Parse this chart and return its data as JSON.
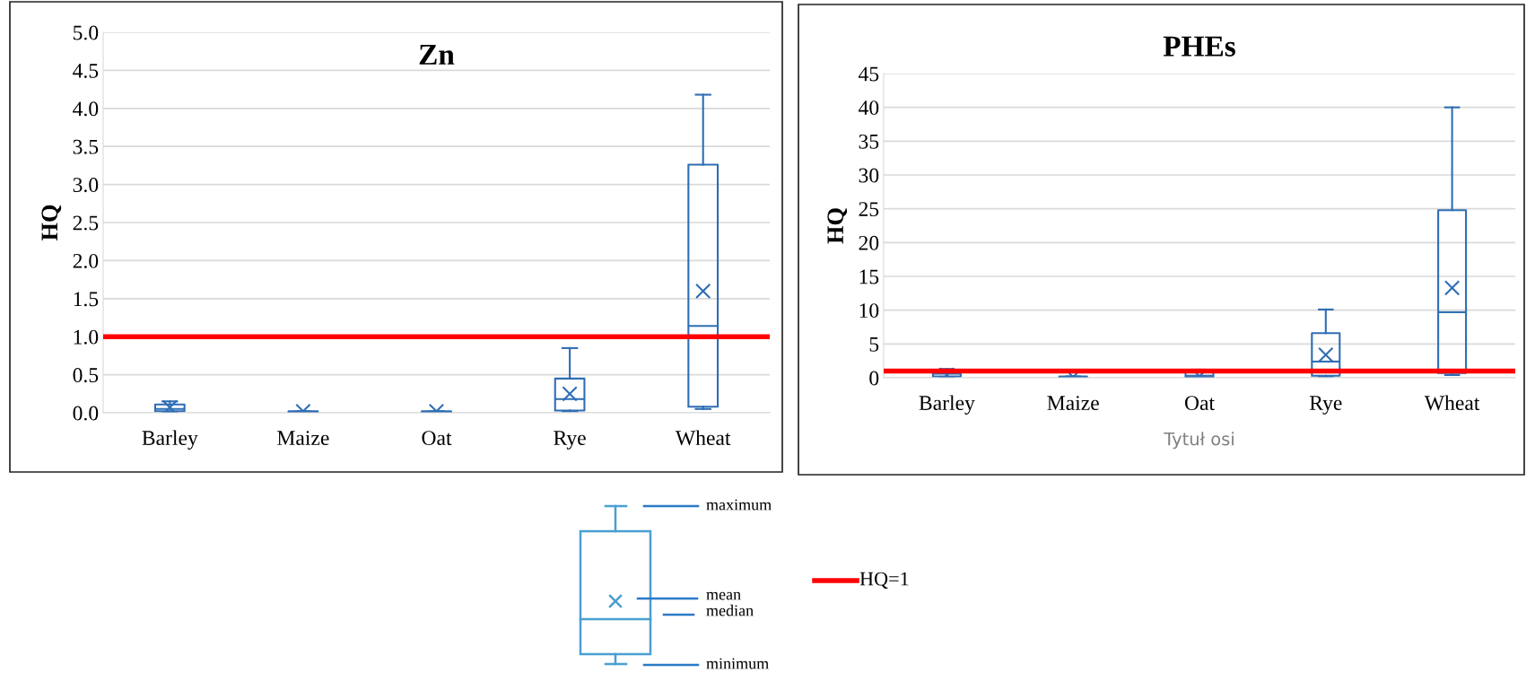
{
  "chart_data": [
    {
      "type": "box",
      "title": "Zn",
      "ylabel": "HQ",
      "categories": [
        "Barley",
        "Maize",
        "Oat",
        "Rye",
        "Wheat"
      ],
      "ylim": [
        0,
        5
      ],
      "yticks": [
        {
          "value": 0,
          "label": "0.0"
        },
        {
          "value": 0.5,
          "label": "0.5"
        },
        {
          "value": 1,
          "label": "1.0"
        },
        {
          "value": 1.5,
          "label": "1.5"
        },
        {
          "value": 2,
          "label": "2.0"
        },
        {
          "value": 2.5,
          "label": "2.5"
        },
        {
          "value": 3,
          "label": "3.0"
        },
        {
          "value": 3.5,
          "label": "3.5"
        },
        {
          "value": 4,
          "label": "4.0"
        },
        {
          "value": 4.5,
          "label": "4.5"
        },
        {
          "value": 5,
          "label": "5.0"
        }
      ],
      "grid": "y",
      "series": [
        {
          "color": "#2e6db4",
          "boxes": [
            {
              "low": 0.01,
              "q1": 0.02,
              "median": 0.05,
              "q3": 0.11,
              "high": 0.15,
              "mean": 0.07
            },
            {
              "low": 0.0,
              "q1": 0.0,
              "median": 0.01,
              "q3": 0.02,
              "high": 0.02,
              "mean": 0.02
            },
            {
              "low": 0.0,
              "q1": 0.0,
              "median": 0.01,
              "q3": 0.02,
              "high": 0.02,
              "mean": 0.02
            },
            {
              "low": 0.02,
              "q1": 0.03,
              "median": 0.18,
              "q3": 0.45,
              "high": 0.85,
              "mean": 0.25
            },
            {
              "low": 0.05,
              "q1": 0.08,
              "median": 1.14,
              "q3": 3.26,
              "high": 4.18,
              "mean": 1.6
            }
          ]
        }
      ],
      "ref_lines": [
        {
          "axis": "y",
          "value": 1,
          "label": "HQ=1",
          "color": "#ff0000"
        }
      ],
      "annotations": [
        "maximum",
        "mean",
        "median",
        "minimum"
      ]
    },
    {
      "type": "box",
      "title": "PHEs",
      "ylabel": "HQ",
      "xlabel": "Tytuł osi",
      "categories": [
        "Barley",
        "Maize",
        "Oat",
        "Rye",
        "Wheat"
      ],
      "ylim": [
        0,
        45
      ],
      "yticks": [
        0,
        5,
        10,
        15,
        20,
        25,
        30,
        35,
        40,
        45
      ],
      "grid": "y",
      "series": [
        {
          "color": "#2e6db4",
          "boxes": [
            {
              "low": 0.1,
              "q1": 0.2,
              "median": 0.6,
              "q3": 0.9,
              "high": 1.3,
              "mean": 0.4
            },
            {
              "low": 0.0,
              "q1": 0.05,
              "median": 0.1,
              "q3": 0.2,
              "high": 0.2,
              "mean": 0.1
            },
            {
              "low": 0.0,
              "q1": 0.1,
              "median": 0.3,
              "q3": 1.0,
              "high": 1.2,
              "mean": 0.2
            },
            {
              "low": 0.2,
              "q1": 0.3,
              "median": 2.4,
              "q3": 6.6,
              "high": 10.1,
              "mean": 3.4
            },
            {
              "low": 0.4,
              "q1": 0.7,
              "median": 9.7,
              "q3": 24.8,
              "high": 40,
              "mean": 13.3
            }
          ]
        }
      ],
      "ref_lines": [
        {
          "axis": "y",
          "value": 1,
          "color": "#ff0000"
        }
      ]
    }
  ]
}
